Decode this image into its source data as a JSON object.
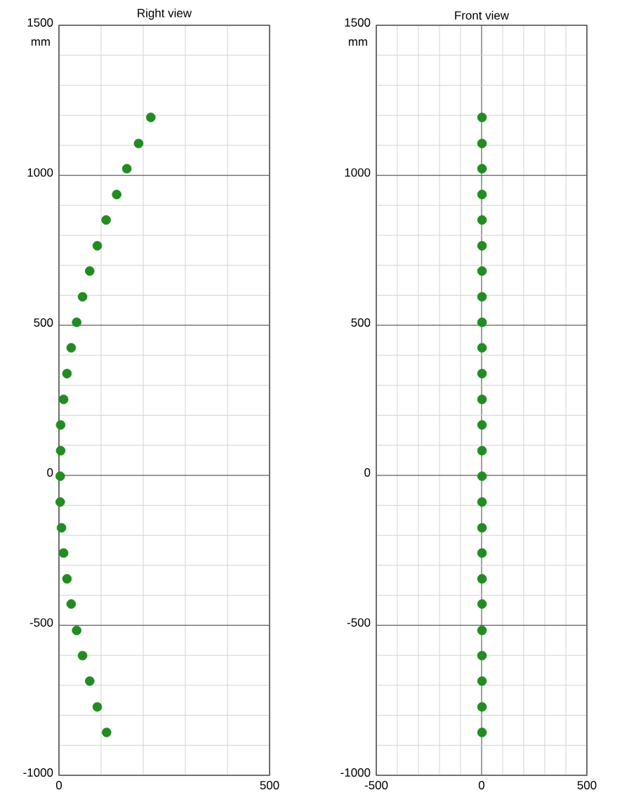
{
  "chart_data": [
    {
      "type": "scatter",
      "title": "Right view",
      "ylabel": "mm",
      "color": "#228b22",
      "marker": "circle",
      "grid": true,
      "xlim": [
        0,
        500
      ],
      "ylim": [
        -1000,
        1500
      ],
      "xticks": [
        0,
        500
      ],
      "yticks": [
        -1000,
        -500,
        0,
        500,
        1000,
        1500
      ],
      "x": [
        218,
        189,
        161,
        137,
        112,
        91,
        73,
        56,
        42,
        29,
        19,
        11,
        4,
        4,
        3,
        3,
        6,
        11,
        19,
        29,
        42,
        56,
        73,
        91,
        113
      ],
      "values": [
        1193,
        1106,
        1022,
        936,
        851,
        765,
        681,
        595,
        510,
        425,
        339,
        253,
        168,
        82,
        -3,
        -89,
        -175,
        -259,
        -345,
        -429,
        -517,
        -601,
        -686,
        -772,
        -857
      ]
    },
    {
      "type": "scatter",
      "title": "Front view",
      "ylabel": "mm",
      "color": "#228b22",
      "marker": "circle",
      "grid": true,
      "xlim": [
        -500,
        500
      ],
      "ylim": [
        -1000,
        1500
      ],
      "xticks": [
        -500,
        0,
        500
      ],
      "yticks": [
        -1000,
        -500,
        0,
        500,
        1000,
        1500
      ],
      "x": [
        2,
        2,
        2,
        2,
        2,
        2,
        2,
        2,
        2,
        2,
        2,
        2,
        2,
        2,
        2,
        2,
        2,
        2,
        2,
        2,
        2,
        2,
        2,
        2,
        2
      ],
      "values": [
        1193,
        1106,
        1022,
        936,
        851,
        765,
        681,
        595,
        510,
        425,
        339,
        253,
        168,
        82,
        -3,
        -89,
        -175,
        -259,
        -345,
        -429,
        -517,
        -601,
        -686,
        -772,
        -857
      ]
    }
  ]
}
